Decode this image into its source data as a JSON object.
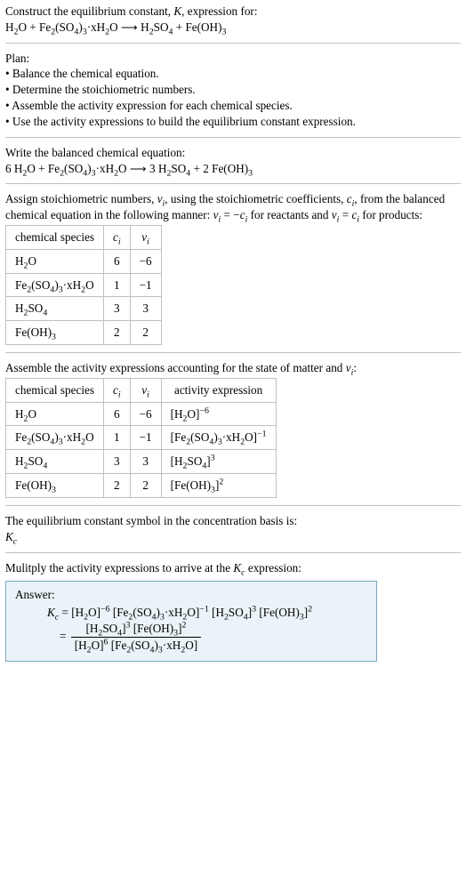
{
  "intro": {
    "line1": "Construct the equilibrium constant, <i>K</i>, expression for:",
    "eq": "H<sub>2</sub>O + Fe<sub>2</sub>(SO<sub>4</sub>)<sub>3</sub>·xH<sub>2</sub>O ⟶ H<sub>2</sub>SO<sub>4</sub> + Fe(OH)<sub>3</sub>"
  },
  "plan": {
    "title": "Plan:",
    "items": [
      "Balance the chemical equation.",
      "Determine the stoichiometric numbers.",
      "Assemble the activity expression for each chemical species.",
      "Use the activity expressions to build the equilibrium constant expression."
    ]
  },
  "balanced": {
    "title": "Write the balanced chemical equation:",
    "eq": "6 H<sub>2</sub>O + Fe<sub>2</sub>(SO<sub>4</sub>)<sub>3</sub>·xH<sub>2</sub>O ⟶ 3 H<sub>2</sub>SO<sub>4</sub> + 2 Fe(OH)<sub>3</sub>"
  },
  "stoich": {
    "text": "Assign stoichiometric numbers, <i>ν<sub>i</sub></i>, using the stoichiometric coefficients, <i>c<sub>i</sub></i>, from the balanced chemical equation in the following manner: <i>ν<sub>i</sub></i> = −<i>c<sub>i</sub></i> for reactants and <i>ν<sub>i</sub></i> = <i>c<sub>i</sub></i> for products:",
    "headers": [
      "chemical species",
      "<i>c<sub>i</sub></i>",
      "<i>ν<sub>i</sub></i>"
    ],
    "rows": [
      [
        "H<sub>2</sub>O",
        "6",
        "−6"
      ],
      [
        "Fe<sub>2</sub>(SO<sub>4</sub>)<sub>3</sub>·xH<sub>2</sub>O",
        "1",
        "−1"
      ],
      [
        "H<sub>2</sub>SO<sub>4</sub>",
        "3",
        "3"
      ],
      [
        "Fe(OH)<sub>3</sub>",
        "2",
        "2"
      ]
    ]
  },
  "activity": {
    "text": "Assemble the activity expressions accounting for the state of matter and <i>ν<sub>i</sub></i>:",
    "headers": [
      "chemical species",
      "<i>c<sub>i</sub></i>",
      "<i>ν<sub>i</sub></i>",
      "activity expression"
    ],
    "rows": [
      [
        "H<sub>2</sub>O",
        "6",
        "−6",
        "[H<sub>2</sub>O]<sup>−6</sup>"
      ],
      [
        "Fe<sub>2</sub>(SO<sub>4</sub>)<sub>3</sub>·xH<sub>2</sub>O",
        "1",
        "−1",
        "[Fe<sub>2</sub>(SO<sub>4</sub>)<sub>3</sub>·xH<sub>2</sub>O]<sup>−1</sup>"
      ],
      [
        "H<sub>2</sub>SO<sub>4</sub>",
        "3",
        "3",
        "[H<sub>2</sub>SO<sub>4</sub>]<sup>3</sup>"
      ],
      [
        "Fe(OH)<sub>3</sub>",
        "2",
        "2",
        "[Fe(OH)<sub>3</sub>]<sup>2</sup>"
      ]
    ]
  },
  "kc_symbol": {
    "text": "The equilibrium constant symbol in the concentration basis is:",
    "val": "<i>K<sub>c</sub></i>"
  },
  "multiply": {
    "text": "Mulitply the activity expressions to arrive at the <i>K<sub>c</sub></i> expression:"
  },
  "answer": {
    "label": "Answer:",
    "line1": "<i>K<sub>c</sub></i> = [H<sub>2</sub>O]<sup>−6</sup> [Fe<sub>2</sub>(SO<sub>4</sub>)<sub>3</sub>·xH<sub>2</sub>O]<sup>−1</sup> [H<sub>2</sub>SO<sub>4</sub>]<sup>3</sup> [Fe(OH)<sub>3</sub>]<sup>2</sup>",
    "frac_num": "[H<sub>2</sub>SO<sub>4</sub>]<sup>3</sup> [Fe(OH)<sub>3</sub>]<sup>2</sup>",
    "frac_den": "[H<sub>2</sub>O]<sup>6</sup> [Fe<sub>2</sub>(SO<sub>4</sub>)<sub>3</sub>·xH<sub>2</sub>O]"
  }
}
